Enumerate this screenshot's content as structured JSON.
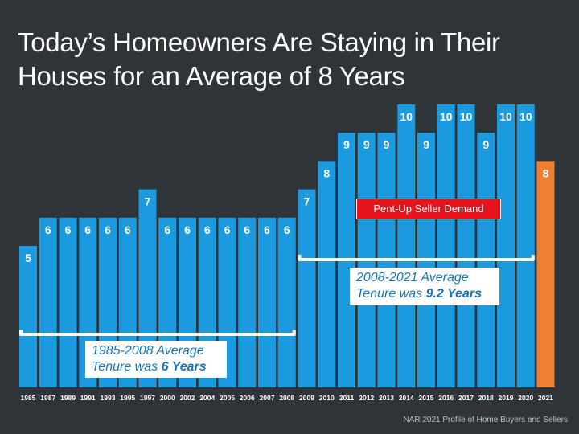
{
  "title": "Today’s Homeowners Are Staying in Their Houses for an Average of 8 Years",
  "source": "NAR 2021 Profile of Home Buyers and Sellers",
  "chart_data": {
    "type": "bar",
    "categories": [
      "1985",
      "1987",
      "1989",
      "1991",
      "1993",
      "1995",
      "1997",
      "2000",
      "2002",
      "2004",
      "2005",
      "2006",
      "2007",
      "2008",
      "2009",
      "2010",
      "2011",
      "2012",
      "2013",
      "2014",
      "2015",
      "2016",
      "2017",
      "2018",
      "2019",
      "2020",
      "2021"
    ],
    "values": [
      5,
      6,
      6,
      6,
      6,
      6,
      7,
      6,
      6,
      6,
      6,
      6,
      6,
      6,
      7,
      8,
      9,
      9,
      9,
      10,
      9,
      10,
      10,
      9,
      10,
      10,
      8
    ],
    "title": "Today’s Homeowners Are Staying in Their Houses for an Average of 8 Years",
    "xlabel": "",
    "ylabel": "",
    "ylim": [
      0,
      10
    ],
    "grid": false,
    "legend": "none",
    "colors": {
      "default": "#1b9ae0",
      "highlight": "#ee7f33",
      "highlight_category": "2021"
    },
    "annotations": [
      {
        "text_line1": "1985-2008 Average",
        "text_line2_prefix": "Tenure was ",
        "text_line2_bold": "6 Years",
        "span": [
          "1985",
          "2008"
        ]
      },
      {
        "text_line1": "2008-2021 Average",
        "text_line2_prefix": "Tenure was ",
        "text_line2_bold": "9.2 Years",
        "span": [
          "2009",
          "2020"
        ]
      },
      {
        "text": "Pent-Up Seller Demand",
        "color": "#e8141b"
      }
    ]
  }
}
